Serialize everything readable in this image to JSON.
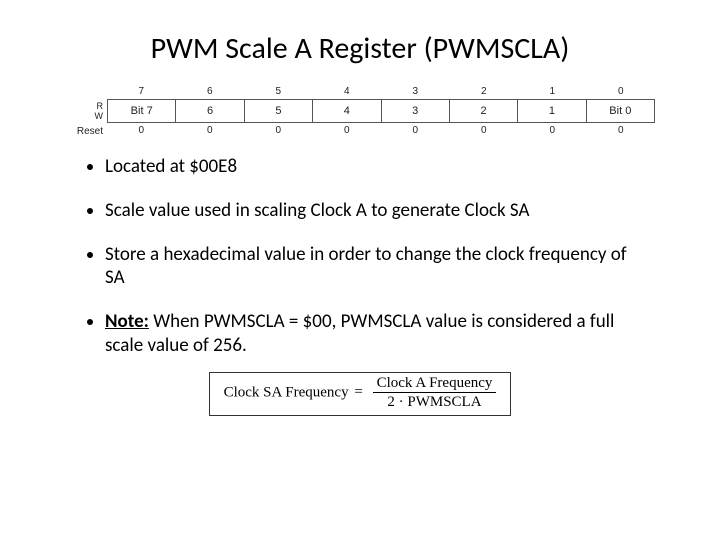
{
  "title": "PWM Scale A Register (PWMSCLA)",
  "register": {
    "rw": {
      "read": "R",
      "write": "W"
    },
    "reset_label": "Reset",
    "bit_indices": [
      "7",
      "6",
      "5",
      "4",
      "3",
      "2",
      "1",
      "0"
    ],
    "bit_names": [
      "Bit 7",
      "6",
      "5",
      "4",
      "3",
      "2",
      "1",
      "Bit 0"
    ],
    "reset_vals": [
      "0",
      "0",
      "0",
      "0",
      "0",
      "0",
      "0",
      "0"
    ]
  },
  "bullets": {
    "b1": "Located at $00E8",
    "b2": "Scale value used in scaling Clock A to generate Clock SA",
    "b3": "Store a hexadecimal value in order to change the clock frequency of SA",
    "b4_label": "Note:",
    "b4_rest": " When PWMSCLA = $00, PWMSCLA value is considered a full scale value of 256."
  },
  "formula": {
    "lhs": "Clock SA Frequency",
    "eq": "=",
    "num": "Clock A Frequency",
    "den": "2 · PWMSCLA"
  }
}
